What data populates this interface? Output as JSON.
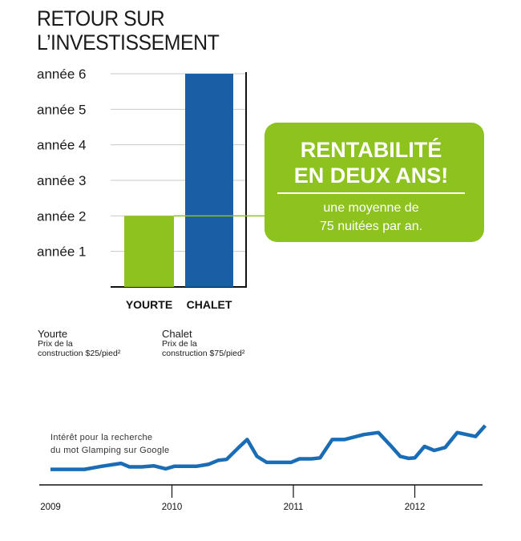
{
  "title_line1": "RETOUR SUR",
  "title_line2": "L’INVESTISSEMENT",
  "chart_data": [
    {
      "type": "bar",
      "categories": [
        "YOURTE",
        "CHALET"
      ],
      "values": [
        2,
        6
      ],
      "colors": [
        "#8dc21f",
        "#1a5ea6"
      ],
      "ytick_labels": [
        "année 1",
        "année 2",
        "année 3",
        "année 4",
        "année 5",
        "année 6"
      ],
      "ylim": [
        0,
        6
      ],
      "grid": true
    },
    {
      "type": "line",
      "title": "Intérêt pour la recherche du mot Glamping sur Google",
      "xtick_labels": [
        "2009",
        "2010",
        "2011",
        "2012"
      ],
      "line_color": "#1a6db5",
      "x": [
        2009.0,
        2009.1,
        2009.2,
        2009.28,
        2009.42,
        2009.58,
        2009.65,
        2009.75,
        2009.85,
        2009.95,
        2010.02,
        2010.1,
        2010.2,
        2010.3,
        2010.38,
        2010.45,
        2010.55,
        2010.62,
        2010.7,
        2010.78,
        2010.9,
        2010.98,
        2011.05,
        2011.15,
        2011.22,
        2011.32,
        2011.42,
        2011.58,
        2011.7,
        2011.8,
        2011.88,
        2011.95,
        2012.0,
        2012.08,
        2012.16,
        2012.25,
        2012.35,
        2012.5,
        2012.58
      ],
      "y": [
        0.12,
        0.12,
        0.12,
        0.12,
        0.18,
        0.24,
        0.17,
        0.17,
        0.19,
        0.13,
        0.18,
        0.18,
        0.18,
        0.22,
        0.3,
        0.32,
        0.56,
        0.72,
        0.38,
        0.26,
        0.26,
        0.26,
        0.33,
        0.33,
        0.35,
        0.72,
        0.72,
        0.82,
        0.86,
        0.6,
        0.38,
        0.34,
        0.35,
        0.58,
        0.5,
        0.56,
        0.86,
        0.78,
        1.0
      ]
    }
  ],
  "callout": {
    "headline_line1": "RENTABILITÉ",
    "headline_line2": "EN DEUX ANS!",
    "body_line1": "une moyenne de",
    "body_line2": "75 nuitées par an.",
    "color": "#8dc21f"
  },
  "notes": [
    {
      "name": "Yourte",
      "line1": "Prix de la",
      "line2": "construction $25/pied²"
    },
    {
      "name": "Chalet",
      "line1": "Prix de la",
      "line2": "construction $75/pied²"
    }
  ]
}
